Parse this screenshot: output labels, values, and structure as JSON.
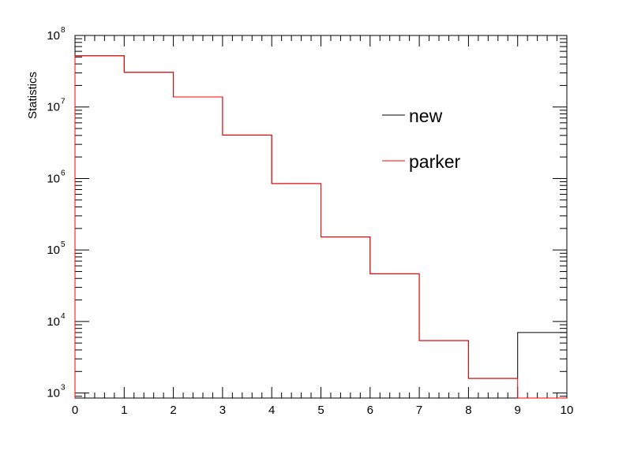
{
  "chart_data": {
    "type": "histogram-step",
    "title": "",
    "xlabel": "",
    "ylabel": "Statistics",
    "xlim": [
      0,
      10
    ],
    "ylim": [
      850,
      100000000
    ],
    "yscale": "log",
    "grid": false,
    "legend_position": "top-right",
    "x_ticks": [
      "0",
      "1",
      "2",
      "3",
      "4",
      "5",
      "6",
      "7",
      "8",
      "9",
      "10"
    ],
    "y_ticks": [
      {
        "base": "10",
        "exp": "3",
        "value": 1000
      },
      {
        "base": "10",
        "exp": "4",
        "value": 10000
      },
      {
        "base": "10",
        "exp": "5",
        "value": 100000
      },
      {
        "base": "10",
        "exp": "6",
        "value": 1000000
      },
      {
        "base": "10",
        "exp": "7",
        "value": 10000000
      },
      {
        "base": "10",
        "exp": "8",
        "value": 100000000
      }
    ],
    "bin_edges": [
      0,
      1,
      2,
      3,
      4,
      5,
      6,
      7,
      8,
      9,
      10
    ],
    "series": [
      {
        "name": "new",
        "color": "#000000",
        "values": [
          52000000,
          30500000,
          13800000,
          4050000,
          850000,
          152000,
          46500,
          5400,
          1600,
          7000
        ]
      },
      {
        "name": "parker",
        "color": "#ff0000",
        "values": [
          52000000,
          30500000,
          13800000,
          4050000,
          850000,
          152000,
          46500,
          5400,
          1600,
          0
        ]
      }
    ]
  }
}
